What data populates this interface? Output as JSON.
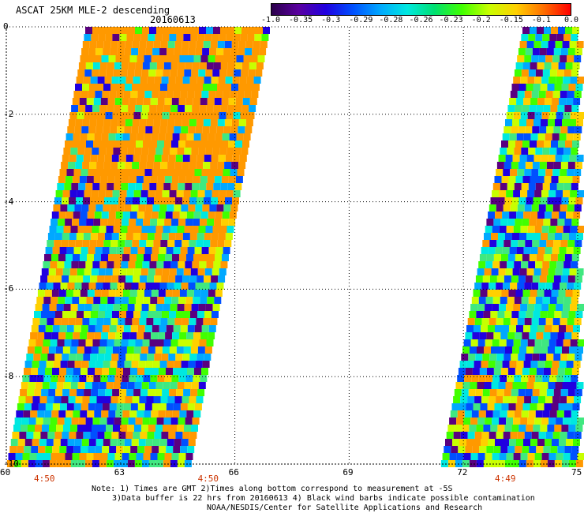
{
  "title": "ASCAT 25KM MLE-2 descending",
  "date": "20160613",
  "colorbar": {
    "labels": [
      "-1.0",
      "-0.35",
      "-0.3",
      "-0.29",
      "-0.28",
      "-0.26",
      "-0.23",
      "-0.2",
      "-0.15",
      "-0.1",
      "0.0"
    ],
    "colors": [
      "#2a004a",
      "#5a00a0",
      "#2000e0",
      "#0050ff",
      "#00a8ff",
      "#00e8e0",
      "#00e070",
      "#40ff00",
      "#c8ff00",
      "#ffd000",
      "#ff7000",
      "#ff0000"
    ]
  },
  "map": {
    "lon_labels": [
      "60",
      "63",
      "66",
      "69",
      "72",
      "75"
    ],
    "lat_labels": [
      "0",
      "-2",
      "-4",
      "-6",
      "-8",
      "-10"
    ],
    "lon_range": [
      60,
      75
    ],
    "lat_range": [
      0,
      -10
    ],
    "grid": "dotted",
    "fill_color": "#ff9900",
    "swath_colors": [
      "#ff9900",
      "#00e8e0",
      "#40e880",
      "#40ff00",
      "#c8ff00",
      "#ffd000",
      "#0050ff",
      "#2000e0",
      "#5a0080",
      "#00a8ff"
    ]
  },
  "times": [
    {
      "label": "4:50",
      "lon": 61
    },
    {
      "label": "4:50",
      "lon": 65.3
    },
    {
      "label": "4:49",
      "lon": 73.1
    }
  ],
  "notes": [
    "Note: 1) Times are GMT 2)Times along bottom correspond to measurement at -5S",
    "3)Data buffer is 22 hrs from 20160613 4) Black wind barbs indicate possible contamination",
    "NOAA/NESDIS/Center for Satellite Applications and Research"
  ]
}
